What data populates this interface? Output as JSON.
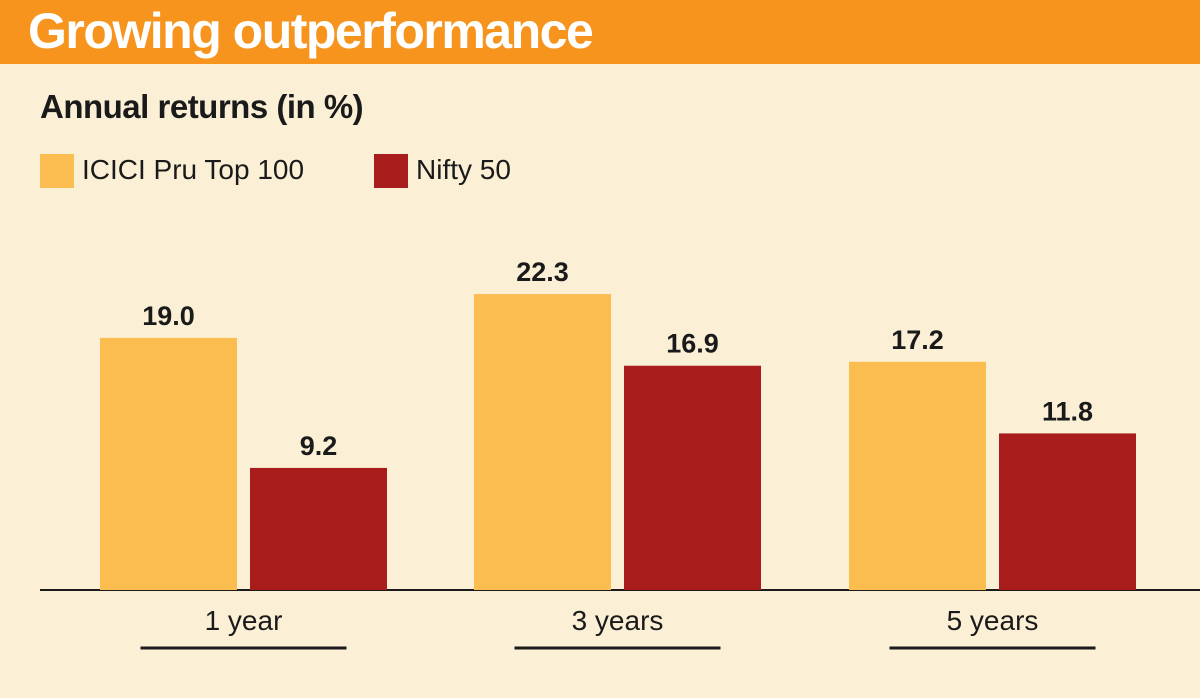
{
  "header": {
    "title": "Growing outperformance"
  },
  "subtitle": "Annual returns (in %)",
  "colors": {
    "title_bar": "#f7941d",
    "background": "#fbf0d6",
    "icici": "#fbbd4f",
    "nifty": "#a81d1b"
  },
  "chart_data": {
    "type": "bar",
    "title": "Growing outperformance",
    "subtitle": "Annual returns (in %)",
    "categories": [
      "1 year",
      "3 years",
      "5 years"
    ],
    "series": [
      {
        "name": "ICICI Pru Top 100",
        "values": [
          19.0,
          22.3,
          17.2
        ],
        "labels": [
          "19.0",
          "22.3",
          "17.2"
        ],
        "color": "#fbbd4f"
      },
      {
        "name": "Nifty 50",
        "values": [
          9.2,
          16.9,
          11.8
        ],
        "labels": [
          "9.2",
          "16.9",
          "11.8"
        ],
        "color": "#a81d1b"
      }
    ],
    "ylim": [
      0,
      25
    ],
    "grid": false,
    "legend": "top-left"
  }
}
